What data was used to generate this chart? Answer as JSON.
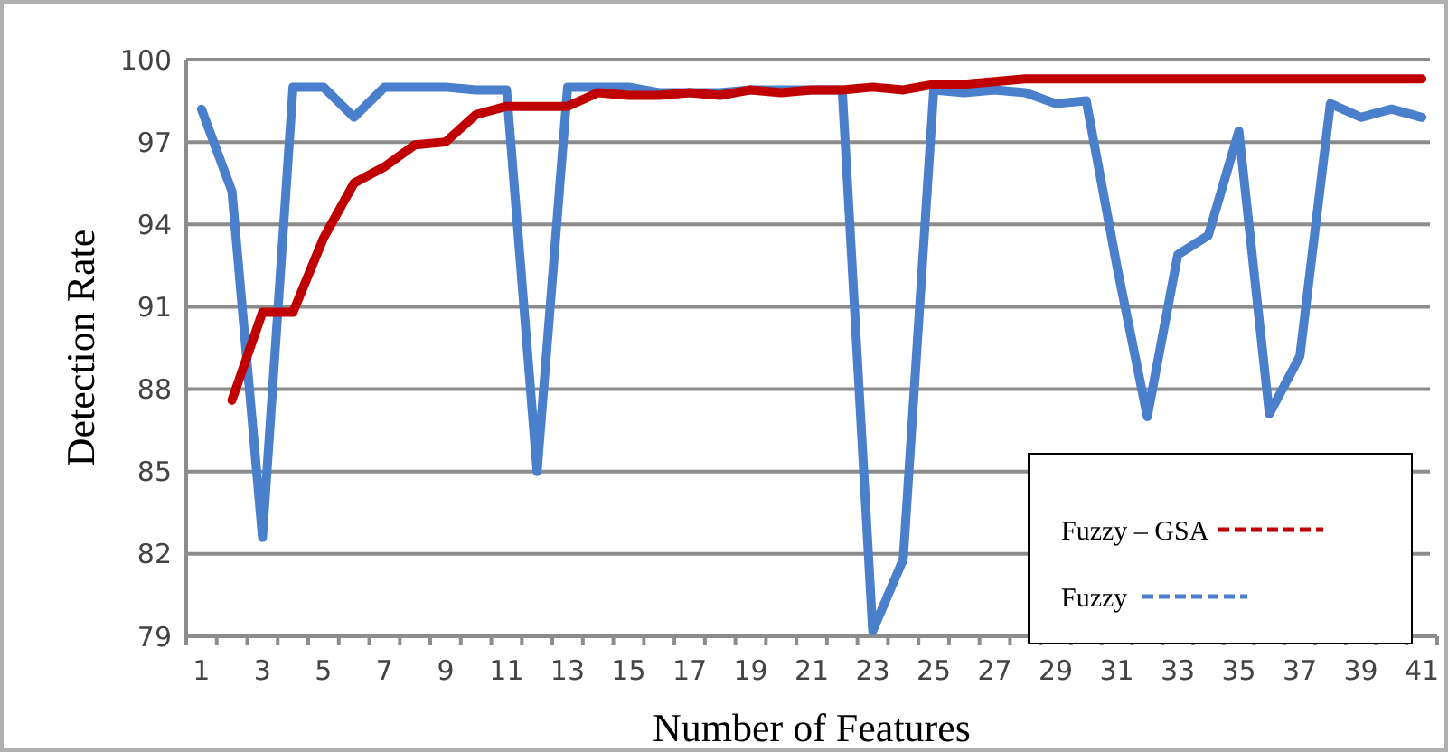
{
  "chart_data": {
    "type": "line",
    "xlabel": "Number of Features",
    "ylabel": "Detection Rate",
    "x": [
      1,
      2,
      3,
      4,
      5,
      6,
      7,
      8,
      9,
      10,
      11,
      12,
      13,
      14,
      15,
      16,
      17,
      18,
      19,
      20,
      21,
      22,
      23,
      24,
      25,
      26,
      27,
      28,
      29,
      30,
      31,
      32,
      33,
      34,
      35,
      36,
      37,
      38,
      39,
      40,
      41
    ],
    "xlim": [
      0.5,
      41.5
    ],
    "xticks": [
      1,
      3,
      5,
      7,
      9,
      11,
      13,
      15,
      17,
      19,
      21,
      23,
      25,
      27,
      29,
      31,
      33,
      35,
      37,
      39,
      41
    ],
    "series": [
      {
        "name": "Fuzzy",
        "color": "#4a7fcc",
        "values": [
          98.2,
          95.2,
          82.6,
          99,
          99,
          97.9,
          99,
          99,
          99,
          98.9,
          98.9,
          85,
          99,
          99,
          99,
          98.8,
          98.8,
          98.8,
          98.9,
          98.9,
          98.9,
          98.9,
          79.2,
          81.8,
          98.9,
          98.8,
          98.9,
          98.8,
          98.4,
          98.5,
          92.5,
          87,
          92.9,
          93.6,
          97.4,
          87.1,
          89.2,
          98.4,
          97.9,
          98.2,
          97.9
        ]
      },
      {
        "name": "Fuzzy – GSA",
        "color": "#c00000",
        "values": [
          null,
          87.6,
          90.8,
          90.8,
          93.5,
          95.5,
          96.1,
          96.9,
          97,
          98,
          98.3,
          98.3,
          98.3,
          98.8,
          98.7,
          98.7,
          98.8,
          98.7,
          98.9,
          98.8,
          98.9,
          98.9,
          99,
          98.9,
          99.1,
          99.1,
          99.2,
          99.3,
          99.3,
          99.3,
          99.3,
          99.3,
          99.3,
          99.3,
          99.3,
          99.3,
          99.3,
          99.3,
          99.3,
          99.3,
          99.3
        ]
      }
    ],
    "ylim": [
      79,
      100
    ],
    "yticks": [
      79,
      82,
      85,
      88,
      91,
      94,
      97,
      100
    ],
    "grid": "y",
    "legend": "bottom right",
    "marker": "none"
  }
}
